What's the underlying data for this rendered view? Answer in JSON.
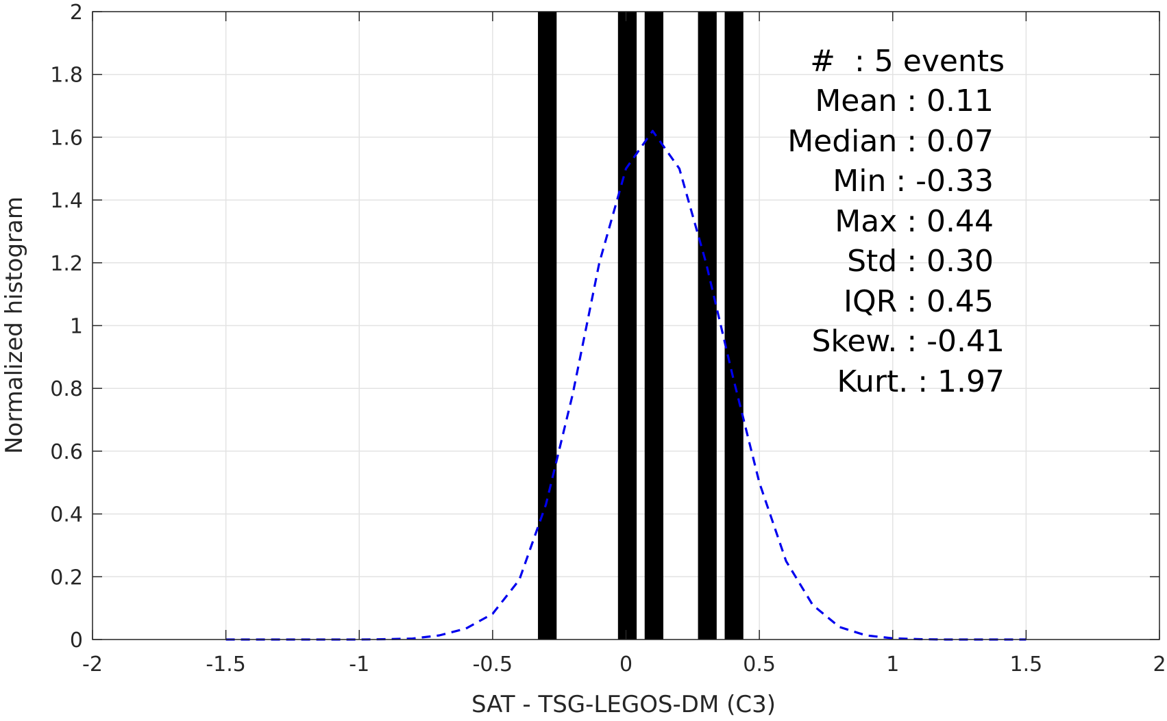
{
  "chart_data": {
    "type": "bar",
    "xlabel": "SAT - TSG-LEGOS-DM (C3)",
    "ylabel": "Normalized histogram",
    "xlim": [
      -2,
      2
    ],
    "ylim": [
      0,
      2
    ],
    "x_ticks": [
      -2,
      -1.5,
      -1,
      -0.5,
      0,
      0.5,
      1,
      1.5,
      2
    ],
    "x_tick_labels": [
      "-2",
      "-1.5",
      "-1",
      "-0.5",
      "0",
      "0.5",
      "1",
      "1.5",
      "2"
    ],
    "y_ticks": [
      0,
      0.2,
      0.4,
      0.6,
      0.8,
      1,
      1.2,
      1.4,
      1.6,
      1.8,
      2
    ],
    "y_tick_labels": [
      "0",
      "0.2",
      "0.4",
      "0.6",
      "0.8",
      "1",
      "1.2",
      "1.4",
      "1.6",
      "1.8",
      "2"
    ],
    "grid": true,
    "bars": [
      {
        "x0": -0.33,
        "x1": -0.26,
        "value": 2
      },
      {
        "x0": -0.03,
        "x1": 0.04,
        "value": 2
      },
      {
        "x0": 0.07,
        "x1": 0.14,
        "value": 2
      },
      {
        "x0": 0.27,
        "x1": 0.34,
        "value": 2
      },
      {
        "x0": 0.37,
        "x1": 0.44,
        "value": 2
      }
    ],
    "bar_color": "#000000",
    "fit_curve": {
      "style": "dashed",
      "color": "#0000ee",
      "x": [
        -1.5,
        -1.4,
        -1.3,
        -1.2,
        -1.1,
        -1.0,
        -0.9,
        -0.8,
        -0.7,
        -0.6,
        -0.5,
        -0.4,
        -0.3,
        -0.2,
        -0.1,
        0.0,
        0.1,
        0.2,
        0.3,
        0.4,
        0.5,
        0.6,
        0.7,
        0.8,
        0.9,
        1.0,
        1.1,
        1.2,
        1.3,
        1.4,
        1.5
      ],
      "y": [
        0,
        0,
        0,
        0,
        0,
        0,
        0.001,
        0.003,
        0.013,
        0.035,
        0.082,
        0.19,
        0.43,
        0.78,
        1.2,
        1.5,
        1.62,
        1.5,
        1.2,
        0.84,
        0.5,
        0.25,
        0.11,
        0.04,
        0.013,
        0.004,
        0.001,
        0,
        0,
        0,
        0
      ]
    },
    "stats_lines": [
      "#  : 5 events",
      "Mean : 0.11",
      "Median : 0.07",
      "Min : -0.33",
      "Max : 0.44",
      "Std : 0.30",
      "IQR : 0.45",
      "Skew. : -0.41",
      "Kurt. : 1.97"
    ]
  }
}
